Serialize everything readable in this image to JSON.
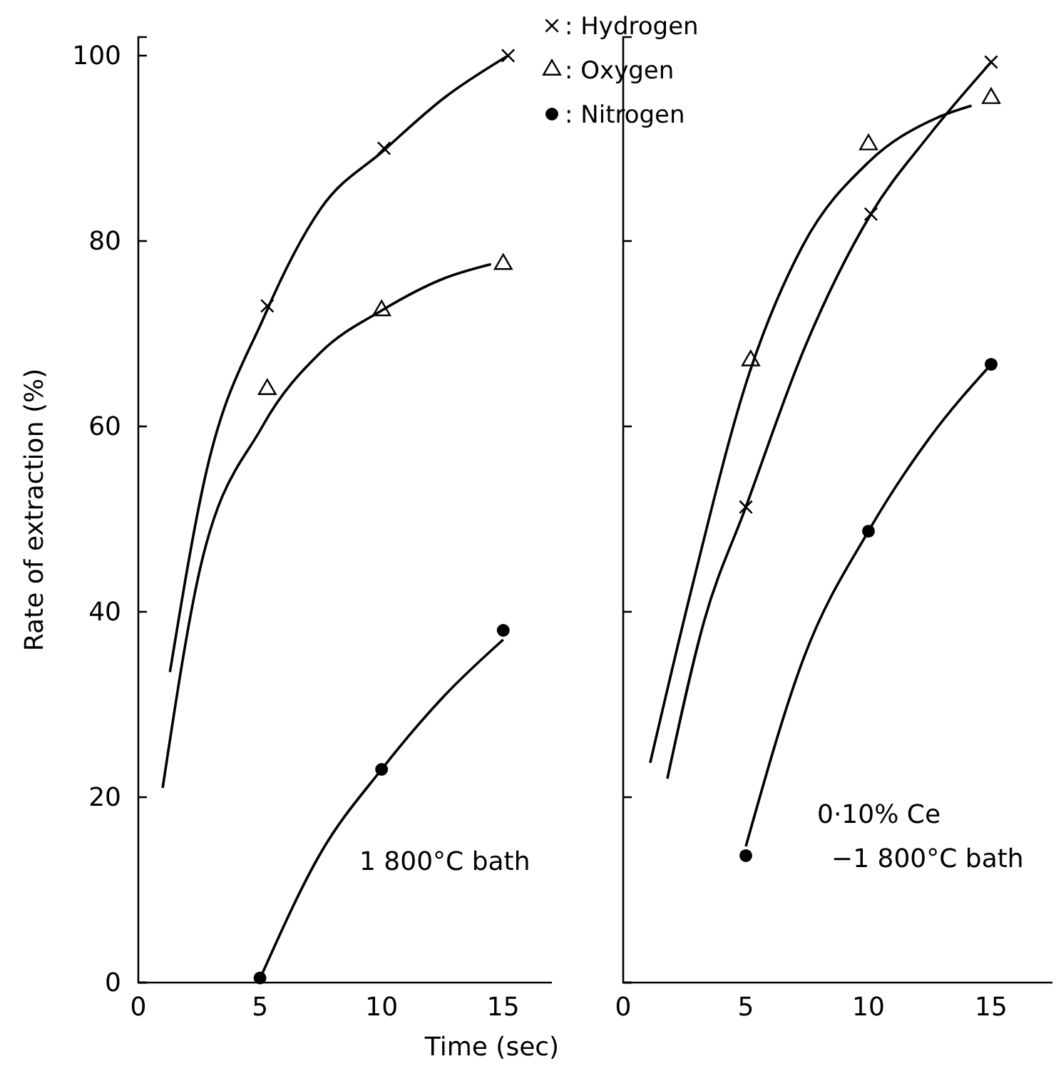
{
  "chart_data": [
    {
      "type": "line",
      "xlabel": "Time (sec)",
      "ylabel": "Rate of extraction (%)",
      "xlim": [
        0,
        17
      ],
      "ylim": [
        0,
        102
      ],
      "xticks": [
        0,
        5,
        10,
        15
      ],
      "yticks": [
        0,
        20,
        40,
        60,
        80,
        100
      ],
      "grid": false,
      "legend": false,
      "annotations": [
        "1 800°C bath"
      ],
      "series": [
        {
          "type": "scatter",
          "marker": "cross",
          "color": "#000000",
          "x": [
            5.3,
            10.1,
            15.2
          ],
          "values": [
            73,
            90,
            100
          ]
        },
        {
          "type": "scatter",
          "marker": "triangle",
          "color": "#000000",
          "x": [
            5.3,
            10,
            15
          ],
          "values": [
            64,
            72.5,
            77.5
          ]
        },
        {
          "type": "scatter",
          "marker": "circle",
          "color": "#000000",
          "x": [
            5,
            10,
            15
          ],
          "values": [
            0.5,
            23,
            38
          ]
        },
        {
          "type": "line",
          "marker": "none",
          "line_style": "solid",
          "color": "#000000",
          "x": [
            1.3,
            2.7,
            5.2,
            7.5,
            10.1,
            12.6,
            15.2
          ],
          "values": [
            33.5,
            54,
            72,
            83.5,
            89.8,
            95.5,
            100
          ]
        },
        {
          "type": "line",
          "marker": "none",
          "line_style": "solid",
          "color": "#000000",
          "x": [
            1,
            2.4,
            5.1,
            7.5,
            10,
            12.6,
            14.5
          ],
          "values": [
            21,
            43,
            60,
            68,
            72.5,
            76,
            77.5
          ]
        },
        {
          "type": "line",
          "marker": "none",
          "line_style": "solid",
          "color": "#000000",
          "x": [
            5.1,
            7.5,
            10,
            12.6,
            15
          ],
          "values": [
            1,
            14,
            23,
            31,
            37
          ]
        }
      ]
    },
    {
      "type": "line",
      "xlim": [
        0,
        17.5
      ],
      "ylim": [
        0,
        102
      ],
      "xticks": [
        0,
        5,
        10,
        15
      ],
      "yticks": [
        {
          "value": 0,
          "label": null
        },
        {
          "value": 20,
          "label": null
        },
        {
          "value": 40,
          "label": null
        },
        {
          "value": 60,
          "label": null
        },
        {
          "value": 80,
          "label": null
        }
      ],
      "tick_labels": "x",
      "grid": false,
      "legend": "top left",
      "annotations": [
        "0·10% Ce",
        "−1 800°C bath"
      ],
      "series": [
        {
          "type": "scatter",
          "name": ": Hydrogen",
          "marker": "cross",
          "color": "#000000",
          "x": [
            5,
            10.1,
            15
          ],
          "values": [
            51.3,
            82.9,
            99.3
          ]
        },
        {
          "type": "scatter",
          "name": ": Oxygen",
          "marker": "triangle",
          "color": "#000000",
          "x": [
            5.2,
            10,
            15
          ],
          "values": [
            67.1,
            90.4,
            95.4
          ]
        },
        {
          "type": "scatter",
          "name": ": Nitrogen",
          "marker": "circle",
          "color": "#000000",
          "x": [
            5,
            10,
            15
          ],
          "values": [
            13.7,
            48.7,
            66.7
          ]
        },
        {
          "type": "line",
          "marker": "none",
          "line_style": "solid",
          "color": "#000000",
          "x": [
            1.8,
            3.3,
            5,
            7.4,
            10.1,
            12.5,
            15
          ],
          "values": [
            22,
            39,
            51.3,
            68.5,
            82.9,
            91.5,
            99.3
          ]
        },
        {
          "type": "line",
          "marker": "none",
          "line_style": "solid",
          "color": "#000000",
          "x": [
            1.1,
            2.8,
            5.1,
            7.3,
            10,
            12.8,
            14.2
          ],
          "values": [
            23.7,
            42.6,
            65.4,
            79.4,
            88.5,
            93.3,
            94.6
          ]
        },
        {
          "type": "line",
          "marker": "none",
          "line_style": "solid",
          "color": "#000000",
          "x": [
            5,
            7.4,
            10,
            12.5,
            15
          ],
          "values": [
            14.7,
            35.3,
            48.7,
            58.8,
            66.7
          ]
        }
      ]
    }
  ]
}
